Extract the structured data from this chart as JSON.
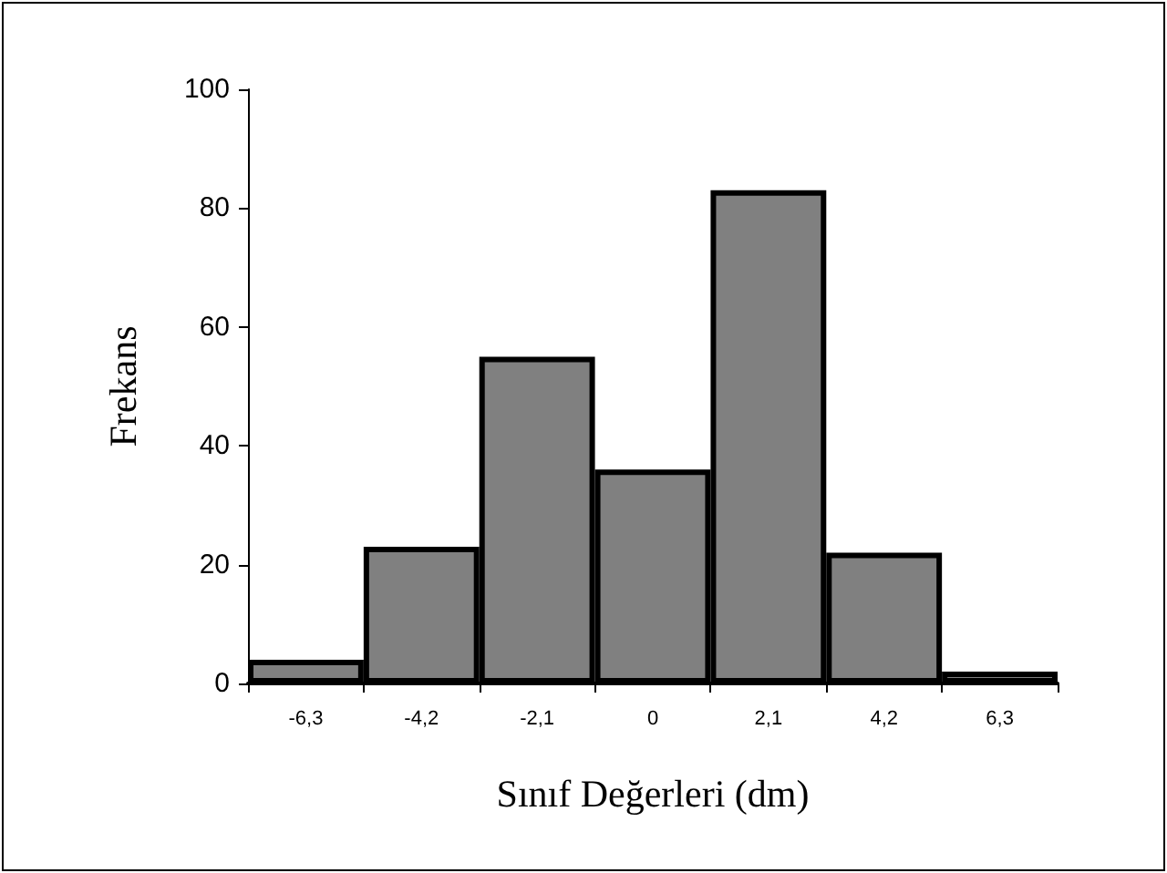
{
  "chart_data": {
    "type": "bar",
    "xlabel": "Sınıf Değerleri (dm)",
    "ylabel": "Frekans",
    "categories": [
      "-6,3",
      "-4,2",
      "-2,1",
      "0",
      "2,1",
      "4,2",
      "6,3"
    ],
    "values": [
      4,
      23,
      55,
      36,
      83,
      22,
      2
    ],
    "color": "#808080",
    "ylim": [
      0,
      100
    ],
    "yticks": [
      0,
      20,
      40,
      60,
      80,
      100
    ],
    "grid": false
  }
}
